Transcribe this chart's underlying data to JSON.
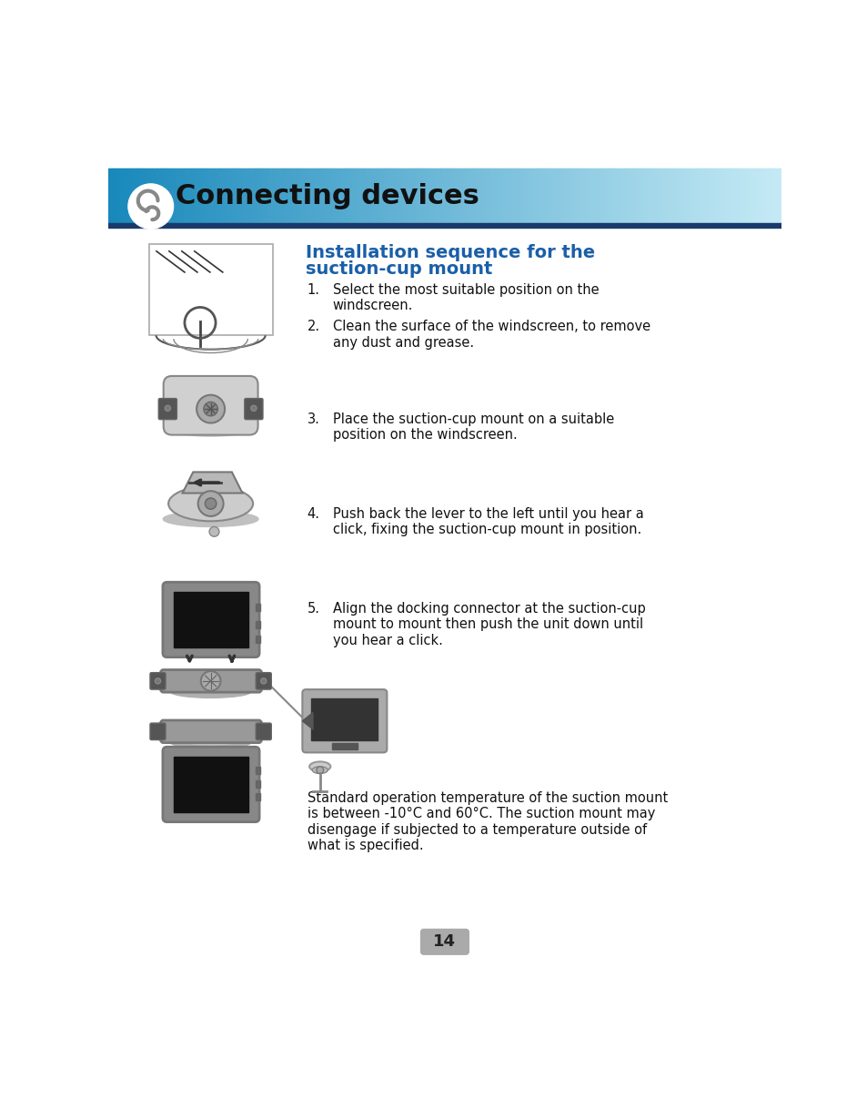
{
  "page_bg": "#ffffff",
  "header_grad_left": "#1888bb",
  "header_grad_right": "#c5eaf5",
  "header_bar_color": "#1a3a6b",
  "header_text": "Connecting devices",
  "header_text_color": "#111111",
  "section_title_color": "#1a5fa8",
  "body_text_color": "#111111",
  "step1_text": "Select the most suitable position on the\nwindscreen.",
  "step2_text": "Clean the surface of the windscreen, to remove\nany dust and grease.",
  "step3_text": "Place the suction-cup mount on a suitable\nposition on the windscreen.",
  "step4_text": "Push back the lever to the left until you hear a\nclick, fixing the suction-cup mount in position.",
  "step5_text": "Align the docking connector at the suction-cup\nmount to mount then push the unit down until\nyou hear a click.",
  "warning_text": "Standard operation temperature of the suction mount\nis between -10°C and 60°C. The suction mount may\ndisengage if subjected to a temperature outside of\nwhat is specified.",
  "page_number": "14",
  "page_number_bg": "#aaaaaa"
}
